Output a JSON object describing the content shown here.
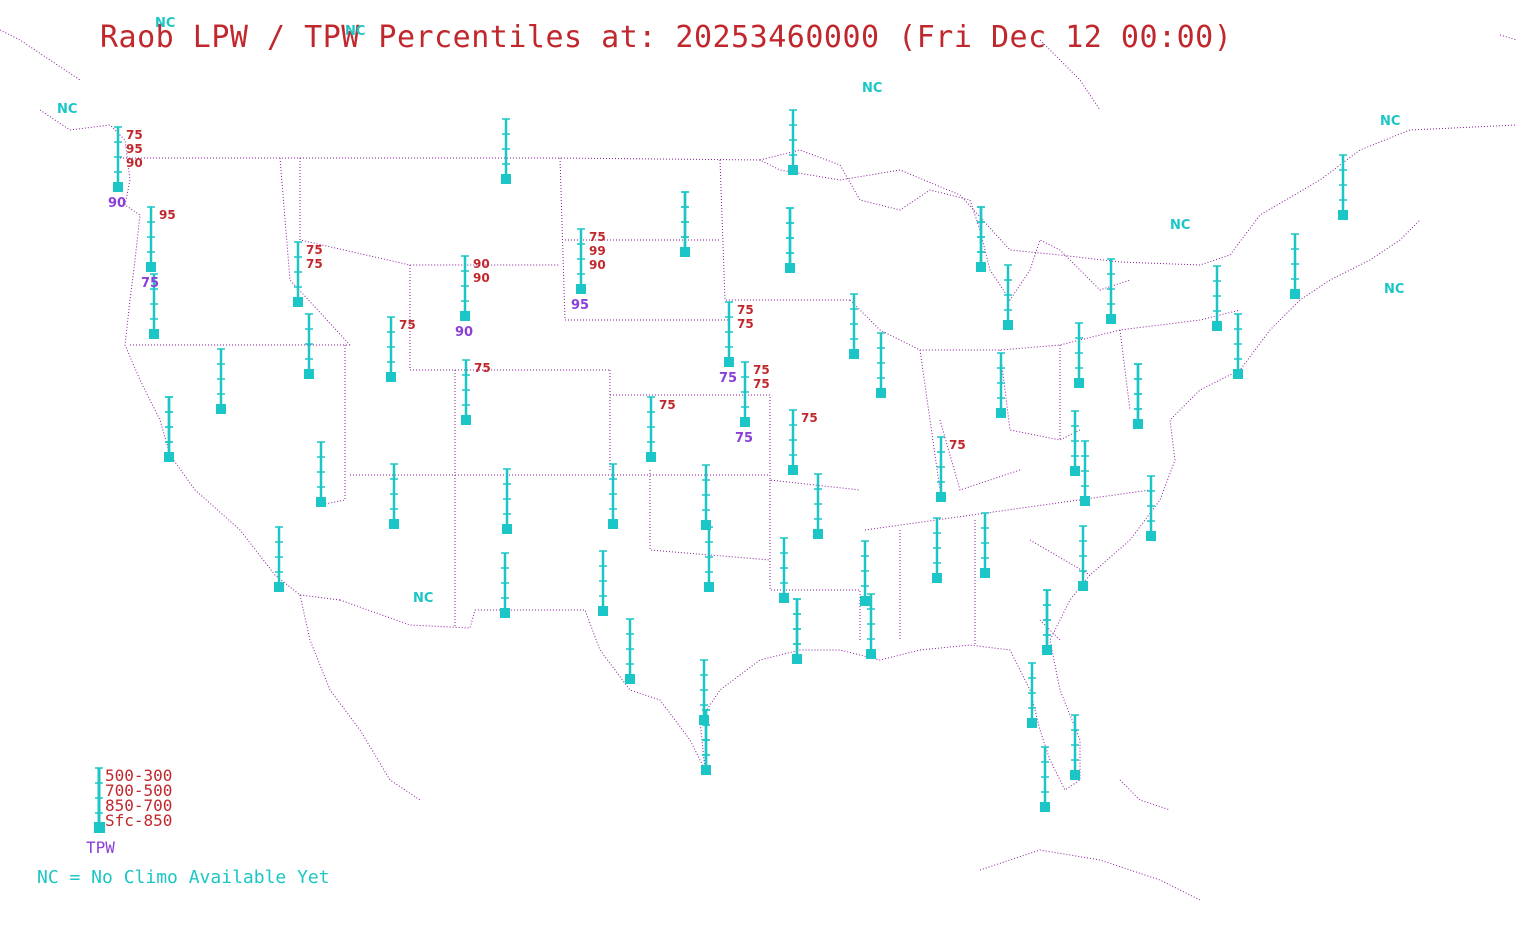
{
  "title": "Raob LPW / TPW Percentiles at: 20253460000 (Fri Dec 12 00:00)",
  "colors": {
    "station": "#1cc6c6",
    "layer_percentile": "#c0282d",
    "tpw_percentile": "#8a3fd8",
    "boundaries": "#8a1a9b",
    "nc": "#1cc6c6"
  },
  "legend": {
    "layers": [
      "500-300",
      "700-500",
      "850-700",
      "Sfc-850"
    ],
    "tpw": "TPW",
    "nc_note": "NC = No Climo Available Yet"
  },
  "nc_marks": [
    "NC",
    "NC",
    "NC",
    "NC",
    "NC",
    "NC",
    "NC",
    "NC"
  ],
  "stations": [
    {
      "id": "uil",
      "layers": [
        "75",
        "95",
        "90"
      ],
      "tpw": "90"
    },
    {
      "id": "otx",
      "layers": [],
      "tpw": ""
    },
    {
      "id": "ggw",
      "layers": [],
      "tpw": ""
    },
    {
      "id": "inl",
      "layers": [],
      "tpw": ""
    },
    {
      "id": "sle",
      "layers": [
        "95"
      ],
      "tpw": "75"
    },
    {
      "id": "mfr",
      "layers": [],
      "tpw": ""
    },
    {
      "id": "boi",
      "layers": [
        "75",
        "75"
      ],
      "tpw": ""
    },
    {
      "id": "lkn",
      "layers": [],
      "tpw": ""
    },
    {
      "id": "oak",
      "layers": [],
      "tpw": ""
    },
    {
      "id": "rev",
      "layers": [],
      "tpw": ""
    },
    {
      "id": "slc",
      "layers": [
        "75"
      ],
      "tpw": ""
    },
    {
      "id": "riw",
      "layers": [
        "90",
        "90"
      ],
      "tpw": "90"
    },
    {
      "id": "unr",
      "layers": [
        "75",
        "99",
        "90"
      ],
      "tpw": "95"
    },
    {
      "id": "bis",
      "layers": [],
      "tpw": ""
    },
    {
      "id": "abr",
      "layers": [],
      "tpw": ""
    },
    {
      "id": "mpx",
      "layers": [],
      "tpw": ""
    },
    {
      "id": "oax",
      "layers": [
        "75",
        "75"
      ],
      "tpw": "75"
    },
    {
      "id": "lbf",
      "layers": [
        "75",
        "75"
      ],
      "tpw": "75"
    },
    {
      "id": "dnr",
      "layers": [
        "75"
      ],
      "tpw": ""
    },
    {
      "id": "gjt",
      "layers": [],
      "tpw": ""
    },
    {
      "id": "ddc",
      "layers": [
        "75"
      ],
      "tpw": ""
    },
    {
      "id": "top",
      "layers": [
        "75"
      ],
      "tpw": ""
    },
    {
      "id": "vef",
      "layers": [],
      "tpw": ""
    },
    {
      "id": "fgz",
      "layers": [],
      "tpw": ""
    },
    {
      "id": "nkx",
      "layers": [],
      "tpw": ""
    },
    {
      "id": "abq",
      "layers": [],
      "tpw": ""
    },
    {
      "id": "ama",
      "layers": [],
      "tpw": ""
    },
    {
      "id": "oun",
      "layers": [],
      "tpw": ""
    },
    {
      "id": "sgf",
      "layers": [],
      "tpw": ""
    },
    {
      "id": "epz",
      "layers": [],
      "tpw": ""
    },
    {
      "id": "maf",
      "layers": [],
      "tpw": ""
    },
    {
      "id": "fwd",
      "layers": [],
      "tpw": ""
    },
    {
      "id": "lzk",
      "layers": [],
      "tpw": ""
    },
    {
      "id": "drt",
      "layers": [],
      "tpw": ""
    },
    {
      "id": "crp",
      "layers": [],
      "tpw": ""
    },
    {
      "id": "bro",
      "layers": [],
      "tpw": ""
    },
    {
      "id": "shv",
      "layers": [],
      "tpw": ""
    },
    {
      "id": "lch",
      "layers": [],
      "tpw": ""
    },
    {
      "id": "jan",
      "layers": [],
      "tpw": ""
    },
    {
      "id": "lix",
      "layers": [],
      "tpw": ""
    },
    {
      "id": "bmx",
      "layers": [],
      "tpw": ""
    },
    {
      "id": "ffc",
      "layers": [],
      "tpw": ""
    },
    {
      "id": "tae",
      "layers": [],
      "tpw": ""
    },
    {
      "id": "jax",
      "layers": [],
      "tpw": ""
    },
    {
      "id": "tbw",
      "layers": [],
      "tpw": ""
    },
    {
      "id": "mfl",
      "layers": [],
      "tpw": ""
    },
    {
      "id": "key",
      "layers": [],
      "tpw": ""
    },
    {
      "id": "chs",
      "layers": [],
      "tpw": ""
    },
    {
      "id": "mhx",
      "layers": [],
      "tpw": ""
    },
    {
      "id": "gso",
      "layers": [],
      "tpw": ""
    },
    {
      "id": "rnk",
      "layers": [],
      "tpw": ""
    },
    {
      "id": "bna",
      "layers": [
        "75"
      ],
      "tpw": ""
    },
    {
      "id": "ilx",
      "layers": [],
      "tpw": ""
    },
    {
      "id": "dvn",
      "layers": [],
      "tpw": ""
    },
    {
      "id": "grb",
      "layers": [],
      "tpw": ""
    },
    {
      "id": "apx",
      "layers": [],
      "tpw": ""
    },
    {
      "id": "dtx",
      "layers": [],
      "tpw": ""
    },
    {
      "id": "iln",
      "layers": [],
      "tpw": ""
    },
    {
      "id": "pit",
      "layers": [],
      "tpw": ""
    },
    {
      "id": "iad",
      "layers": [],
      "tpw": ""
    },
    {
      "id": "wal",
      "layers": [],
      "tpw": ""
    },
    {
      "id": "buf",
      "layers": [],
      "tpw": ""
    },
    {
      "id": "aly",
      "layers": [],
      "tpw": ""
    },
    {
      "id": "okx",
      "layers": [],
      "tpw": ""
    },
    {
      "id": "gyx",
      "layers": [],
      "tpw": ""
    },
    {
      "id": "car",
      "layers": [],
      "tpw": ""
    },
    {
      "id": "inl2",
      "layers": [],
      "tpw": ""
    }
  ]
}
